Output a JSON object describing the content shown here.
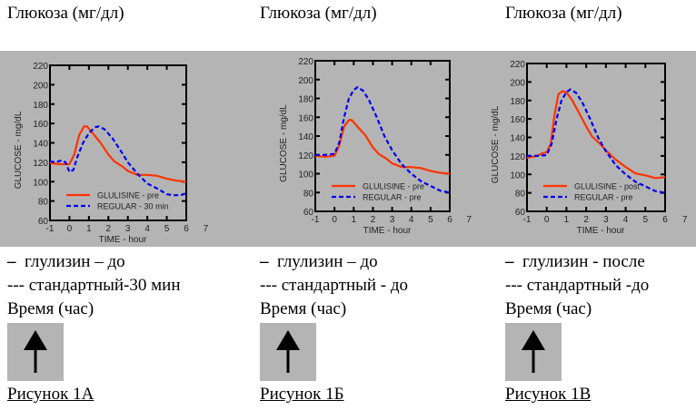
{
  "headings": [
    "Глюкоза (мг/дл)",
    "Глюкоза (мг/дл)",
    "Глюкоза (мг/дл)"
  ],
  "captions": [
    {
      "legend1": "глулизин – до",
      "legend2": "--- стандартный-30 мин",
      "time": "Время (час)",
      "figure": "Рисунок 1А"
    },
    {
      "legend1": "глулизин – до",
      "legend2": "--- стандартный - до",
      "time": "Время (час)",
      "figure": "Рисунок 1Б"
    },
    {
      "legend1": "глулизин - после",
      "legend2": "--- стандартный -до",
      "time": "Время (час)",
      "figure": "Рисунок 1В"
    }
  ],
  "legend_dash": "–",
  "colors": {
    "glulisine": "#ff3300",
    "regular": "#0000ee",
    "band": "#b4b4b4"
  },
  "chart_data": [
    {
      "type": "line",
      "xlabel": "TIME - hour",
      "ylabel": "GLUCOSE - mg/dL",
      "xlim": [
        -1,
        7
      ],
      "ylim": [
        60,
        220
      ],
      "xticks": [
        "-1",
        "0",
        "1",
        "2",
        "3",
        "4",
        "5",
        "6",
        "7"
      ],
      "yticks": [
        "60",
        "80",
        "100",
        "120",
        "140",
        "160",
        "180",
        "200",
        "220"
      ],
      "legend": "bottom-center",
      "series": [
        {
          "name": "GLULISINE - pre",
          "style": "solid",
          "x": [
            -1,
            -0.5,
            0,
            0.25,
            0.5,
            0.75,
            0.9,
            1.2,
            1.6,
            2,
            2.3,
            2.7,
            3,
            3.5,
            4,
            4.5,
            5,
            5.5,
            6
          ],
          "y": [
            119,
            118,
            118,
            128,
            148,
            157,
            157,
            150,
            140,
            128,
            121,
            116,
            111,
            107,
            107,
            106,
            103,
            101,
            100
          ]
        },
        {
          "name": "REGULAR - 30 min",
          "style": "dashed",
          "x": [
            -1,
            -0.7,
            -0.4,
            -0.2,
            0,
            0.2,
            0.4,
            0.7,
            1,
            1.3,
            1.5,
            1.8,
            2.2,
            2.6,
            3,
            3.5,
            4,
            4.5,
            5,
            5.3,
            5.7,
            6
          ],
          "y": [
            121,
            120,
            122,
            120,
            110,
            112,
            125,
            140,
            150,
            156,
            157,
            154,
            145,
            133,
            120,
            108,
            98,
            93,
            87,
            86,
            86,
            88
          ]
        }
      ]
    },
    {
      "type": "line",
      "xlabel": "TIME - hour",
      "ylabel": "GLUCOSE - mg/dL",
      "xlim": [
        -1,
        7
      ],
      "ylim": [
        60,
        220
      ],
      "xticks": [
        "-1",
        "0",
        "1",
        "2",
        "3",
        "4",
        "5",
        "6",
        "7"
      ],
      "yticks": [
        "60",
        "80",
        "100",
        "120",
        "140",
        "160",
        "180",
        "200",
        "220"
      ],
      "legend": "bottom-center",
      "series": [
        {
          "name": "GLULISINE - pre",
          "style": "solid",
          "x": [
            -1,
            -0.5,
            0,
            0.25,
            0.5,
            0.75,
            0.9,
            1.2,
            1.6,
            2,
            2.3,
            2.7,
            3,
            3.5,
            4,
            4.5,
            5,
            5.5,
            6
          ],
          "y": [
            119,
            118,
            119,
            130,
            150,
            157,
            157,
            150,
            141,
            128,
            121,
            116,
            111,
            107,
            107,
            106,
            103,
            101,
            100
          ]
        },
        {
          "name": "REGULAR - pre",
          "style": "dashed",
          "x": [
            -1,
            -0.5,
            0,
            0.25,
            0.5,
            0.75,
            1,
            1.2,
            1.5,
            1.8,
            2.2,
            2.6,
            3,
            3.5,
            4,
            4.5,
            5,
            5.5,
            6
          ],
          "y": [
            120,
            120,
            121,
            133,
            160,
            180,
            189,
            192,
            188,
            178,
            160,
            140,
            125,
            110,
            100,
            92,
            87,
            82,
            80
          ]
        }
      ]
    },
    {
      "type": "line",
      "xlabel": "TIME - hour",
      "ylabel": "GLUCOSE - mg/dL",
      "xlim": [
        -1,
        7
      ],
      "ylim": [
        60,
        220
      ],
      "xticks": [
        "-1",
        "0",
        "1",
        "2",
        "3",
        "4",
        "5",
        "6",
        "7"
      ],
      "yticks": [
        "60",
        "80",
        "100",
        "120",
        "140",
        "160",
        "180",
        "200",
        "220"
      ],
      "legend": "bottom-center",
      "series": [
        {
          "name": "GLULISINE - post",
          "style": "solid",
          "x": [
            -1,
            -0.5,
            -0.2,
            0,
            0.2,
            0.4,
            0.6,
            0.8,
            1,
            1.3,
            1.6,
            2,
            2.3,
            2.7,
            3,
            3.5,
            4,
            4.5,
            5,
            5.5,
            6
          ],
          "y": [
            118,
            120,
            123,
            124,
            133,
            165,
            187,
            190,
            189,
            180,
            168,
            152,
            141,
            133,
            126,
            116,
            108,
            101,
            99,
            96,
            97
          ]
        },
        {
          "name": "REGULAR - pre",
          "style": "dashed",
          "x": [
            -1,
            -0.5,
            0,
            0.25,
            0.5,
            0.75,
            1,
            1.2,
            1.5,
            1.8,
            2.2,
            2.6,
            3,
            3.5,
            4,
            4.5,
            5,
            5.5,
            6
          ],
          "y": [
            120,
            120,
            121,
            133,
            160,
            180,
            189,
            192,
            188,
            178,
            160,
            140,
            125,
            110,
            100,
            92,
            87,
            82,
            80
          ]
        }
      ]
    }
  ]
}
